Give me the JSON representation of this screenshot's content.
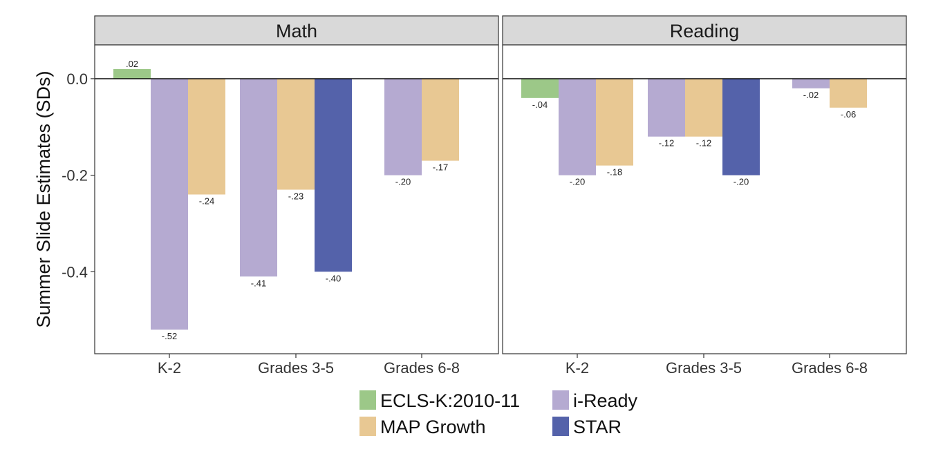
{
  "chart_data": {
    "type": "bar",
    "ylabel": "Summer Slide Estimates (SDs)",
    "ylim": [
      -0.57,
      0.07
    ],
    "yticks": [
      0.0,
      -0.2,
      -0.4
    ],
    "ytick_labels": [
      "0.0",
      "-0.2",
      "-0.4"
    ],
    "grid": false,
    "legend_position": "bottom",
    "categories": [
      "K-2",
      "Grades 3-5",
      "Grades 6-8"
    ],
    "series": [
      {
        "name": "ECLS-K:2010-11",
        "color": "#9cc888"
      },
      {
        "name": "i-Ready",
        "color": "#b5aad1"
      },
      {
        "name": "MAP Growth",
        "color": "#e8c893"
      },
      {
        "name": "STAR",
        "color": "#5462aa"
      }
    ],
    "panels": [
      {
        "title": "Math",
        "groups": [
          {
            "category": "K-2",
            "bars": [
              {
                "series": "ECLS-K:2010-11",
                "value": 0.02,
                "label": ".02"
              },
              {
                "series": "i-Ready",
                "value": -0.52,
                "label": "-.52"
              },
              {
                "series": "MAP Growth",
                "value": -0.24,
                "label": "-.24"
              }
            ]
          },
          {
            "category": "Grades 3-5",
            "bars": [
              {
                "series": "i-Ready",
                "value": -0.41,
                "label": "-.41"
              },
              {
                "series": "MAP Growth",
                "value": -0.23,
                "label": "-.23"
              },
              {
                "series": "STAR",
                "value": -0.4,
                "label": "-.40"
              }
            ]
          },
          {
            "category": "Grades 6-8",
            "bars": [
              {
                "series": "i-Ready",
                "value": -0.2,
                "label": "-.20"
              },
              {
                "series": "MAP Growth",
                "value": -0.17,
                "label": "-.17"
              }
            ]
          }
        ]
      },
      {
        "title": "Reading",
        "groups": [
          {
            "category": "K-2",
            "bars": [
              {
                "series": "ECLS-K:2010-11",
                "value": -0.04,
                "label": "-.04"
              },
              {
                "series": "i-Ready",
                "value": -0.2,
                "label": "-.20"
              },
              {
                "series": "MAP Growth",
                "value": -0.18,
                "label": "-.18"
              }
            ]
          },
          {
            "category": "Grades 3-5",
            "bars": [
              {
                "series": "i-Ready",
                "value": -0.12,
                "label": "-.12"
              },
              {
                "series": "MAP Growth",
                "value": -0.12,
                "label": "-.12"
              },
              {
                "series": "STAR",
                "value": -0.2,
                "label": "-.20"
              }
            ]
          },
          {
            "category": "Grades 6-8",
            "bars": [
              {
                "series": "i-Ready",
                "value": -0.02,
                "label": "-.02"
              },
              {
                "series": "MAP Growth",
                "value": -0.06,
                "label": "-.06"
              }
            ]
          }
        ]
      }
    ]
  }
}
